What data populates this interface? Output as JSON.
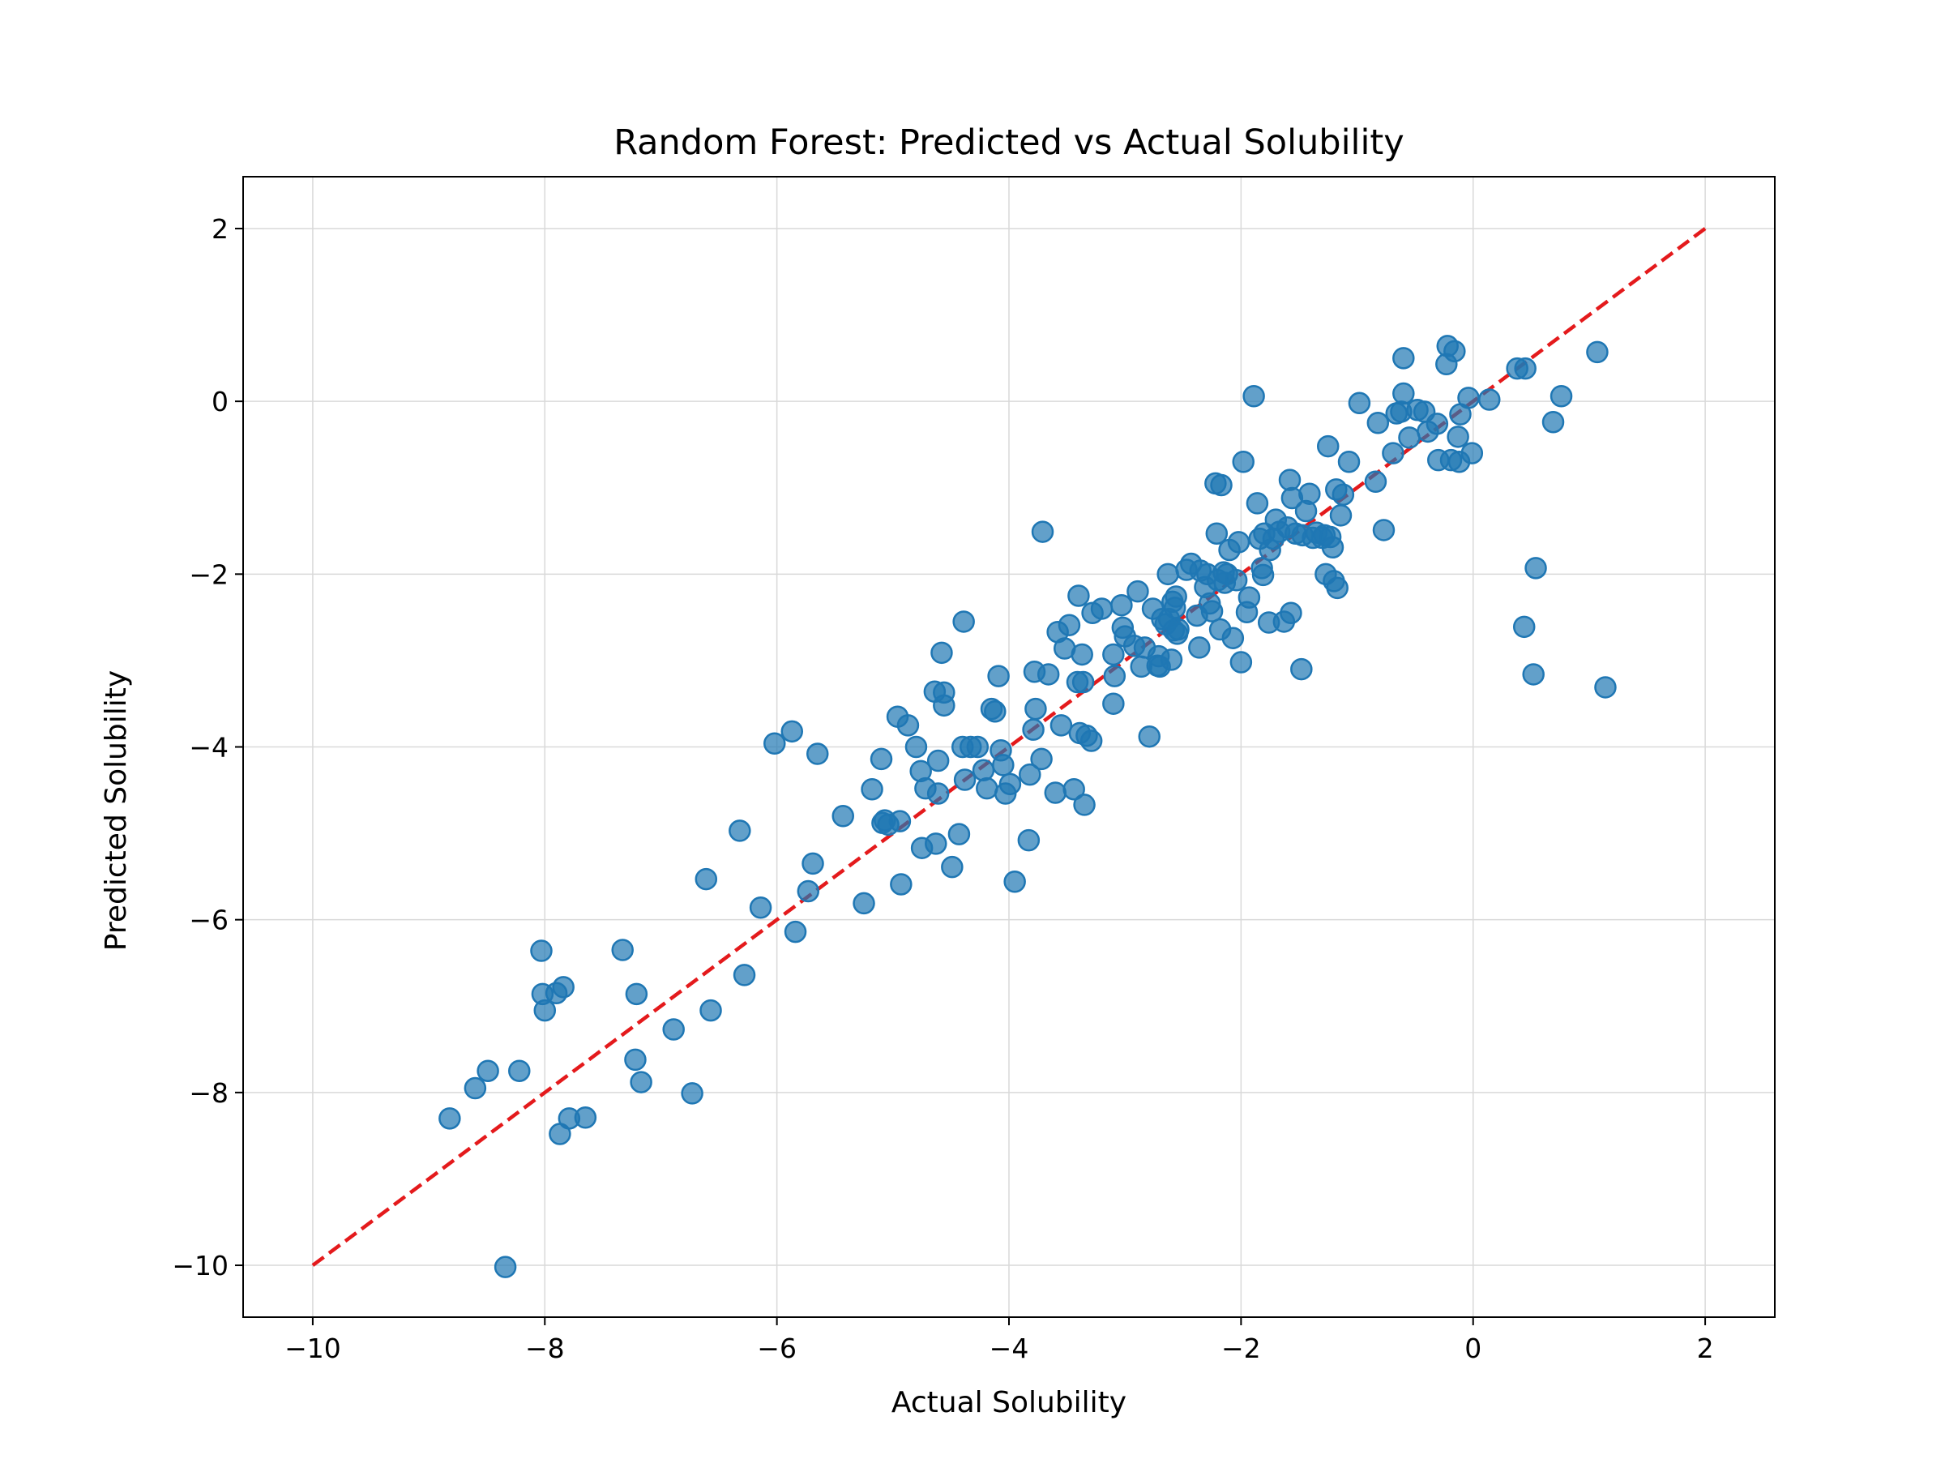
{
  "chart_data": {
    "type": "scatter",
    "title": "Random Forest: Predicted vs Actual Solubility",
    "xlabel": "Actual Solubility",
    "ylabel": "Predicted Solubility",
    "xlim": [
      -10.6,
      2.6
    ],
    "ylim": [
      -10.6,
      2.6
    ],
    "xticks": [
      -10,
      -8,
      -6,
      -4,
      -2,
      0,
      2
    ],
    "yticks": [
      -10,
      -8,
      -6,
      -4,
      -2,
      0,
      2
    ],
    "xtick_labels": [
      "−10",
      "−8",
      "−6",
      "−4",
      "−2",
      "0",
      "2"
    ],
    "ytick_labels": [
      "−10",
      "−8",
      "−6",
      "−4",
      "−2",
      "0",
      "2"
    ],
    "grid": true,
    "point_color": "#1f77b4",
    "reference_line": {
      "x": [
        -10,
        2
      ],
      "y": [
        -10,
        2
      ],
      "color": "#e41a1c",
      "style": "dashed"
    },
    "points": [
      [
        -8.82,
        -8.3
      ],
      [
        -8.6,
        -7.95
      ],
      [
        -8.49,
        -7.75
      ],
      [
        -8.34,
        -10.02
      ],
      [
        -8.22,
        -7.75
      ],
      [
        -8.03,
        -6.36
      ],
      [
        -8.02,
        -6.86
      ],
      [
        -8.0,
        -7.05
      ],
      [
        -7.9,
        -6.85
      ],
      [
        -7.84,
        -6.78
      ],
      [
        -7.87,
        -8.48
      ],
      [
        -7.79,
        -8.3
      ],
      [
        -7.65,
        -8.29
      ],
      [
        -7.33,
        -6.35
      ],
      [
        -7.21,
        -6.86
      ],
      [
        -7.22,
        -7.62
      ],
      [
        -7.17,
        -7.88
      ],
      [
        -6.89,
        -7.27
      ],
      [
        -6.73,
        -8.01
      ],
      [
        -6.61,
        -5.53
      ],
      [
        -6.57,
        -7.05
      ],
      [
        -6.32,
        -4.97
      ],
      [
        -6.28,
        -6.64
      ],
      [
        -6.14,
        -5.86
      ],
      [
        -6.02,
        -3.96
      ],
      [
        -5.87,
        -3.82
      ],
      [
        -5.84,
        -6.14
      ],
      [
        -5.73,
        -5.67
      ],
      [
        -5.69,
        -5.35
      ],
      [
        -5.65,
        -4.08
      ],
      [
        -5.43,
        -4.8
      ],
      [
        -5.25,
        -5.81
      ],
      [
        -5.18,
        -4.49
      ],
      [
        -5.1,
        -4.14
      ],
      [
        -5.09,
        -4.88
      ],
      [
        -5.07,
        -4.85
      ],
      [
        -5.04,
        -4.9
      ],
      [
        -4.96,
        -3.65
      ],
      [
        -4.94,
        -4.86
      ],
      [
        -4.93,
        -5.59
      ],
      [
        -4.87,
        -3.75
      ],
      [
        -4.8,
        -4.0
      ],
      [
        -4.76,
        -4.28
      ],
      [
        -4.75,
        -5.17
      ],
      [
        -4.72,
        -4.48
      ],
      [
        -4.64,
        -3.36
      ],
      [
        -4.63,
        -5.12
      ],
      [
        -4.61,
        -4.16
      ],
      [
        -4.61,
        -4.54
      ],
      [
        -4.58,
        -2.91
      ],
      [
        -4.56,
        -3.37
      ],
      [
        -4.56,
        -3.52
      ],
      [
        -4.49,
        -5.39
      ],
      [
        -4.43,
        -5.01
      ],
      [
        -4.39,
        -2.55
      ],
      [
        -4.4,
        -4.0
      ],
      [
        -4.38,
        -4.38
      ],
      [
        -4.33,
        -4.0
      ],
      [
        -4.27,
        -4.0
      ],
      [
        -4.22,
        -4.27
      ],
      [
        -4.19,
        -4.48
      ],
      [
        -4.15,
        -3.56
      ],
      [
        -4.12,
        -3.59
      ],
      [
        -4.09,
        -3.18
      ],
      [
        -4.07,
        -4.04
      ],
      [
        -4.05,
        -4.21
      ],
      [
        -4.03,
        -4.54
      ],
      [
        -3.99,
        -4.43
      ],
      [
        -3.95,
        -5.56
      ],
      [
        -3.83,
        -5.08
      ],
      [
        -3.82,
        -4.32
      ],
      [
        -3.79,
        -3.8
      ],
      [
        -3.78,
        -3.13
      ],
      [
        -3.77,
        -3.56
      ],
      [
        -3.72,
        -4.14
      ],
      [
        -3.71,
        -1.51
      ],
      [
        -3.66,
        -3.16
      ],
      [
        -3.6,
        -4.53
      ],
      [
        -3.58,
        -2.67
      ],
      [
        -3.55,
        -3.75
      ],
      [
        -3.52,
        -2.86
      ],
      [
        -3.48,
        -2.59
      ],
      [
        -3.44,
        -4.49
      ],
      [
        -3.41,
        -3.25
      ],
      [
        -3.4,
        -2.25
      ],
      [
        -3.39,
        -3.84
      ],
      [
        -3.36,
        -3.25
      ],
      [
        -3.37,
        -2.93
      ],
      [
        -3.35,
        -4.67
      ],
      [
        -3.33,
        -3.87
      ],
      [
        -3.29,
        -3.93
      ],
      [
        -3.28,
        -2.45
      ],
      [
        -3.2,
        -2.4
      ],
      [
        -3.1,
        -2.93
      ],
      [
        -3.09,
        -3.18
      ],
      [
        -3.1,
        -3.5
      ],
      [
        -3.03,
        -2.36
      ],
      [
        -3.02,
        -2.62
      ],
      [
        -3.0,
        -2.72
      ],
      [
        -2.92,
        -2.83
      ],
      [
        -2.89,
        -2.2
      ],
      [
        -2.86,
        -3.07
      ],
      [
        -2.83,
        -2.85
      ],
      [
        -2.79,
        -3.88
      ],
      [
        -2.76,
        -2.4
      ],
      [
        -2.72,
        -3.06
      ],
      [
        -2.71,
        -2.95
      ],
      [
        -2.7,
        -3.07
      ],
      [
        -2.68,
        -2.52
      ],
      [
        -2.65,
        -2.58
      ],
      [
        -2.63,
        -2.0
      ],
      [
        -2.62,
        -2.52
      ],
      [
        -2.59,
        -2.32
      ],
      [
        -2.6,
        -2.99
      ],
      [
        -2.58,
        -2.65
      ],
      [
        -2.57,
        -2.39
      ],
      [
        -2.56,
        -2.26
      ],
      [
        -2.55,
        -2.69
      ],
      [
        -2.54,
        -2.64
      ],
      [
        -2.47,
        -1.95
      ],
      [
        -2.43,
        -1.88
      ],
      [
        -2.38,
        -2.48
      ],
      [
        -2.36,
        -2.85
      ],
      [
        -2.35,
        -1.96
      ],
      [
        -2.31,
        -2.15
      ],
      [
        -2.29,
        -2.0
      ],
      [
        -2.27,
        -2.34
      ],
      [
        -2.25,
        -2.43
      ],
      [
        -2.22,
        -0.95
      ],
      [
        -2.21,
        -1.53
      ],
      [
        -2.2,
        -2.07
      ],
      [
        -2.18,
        -2.64
      ],
      [
        -2.17,
        -0.97
      ],
      [
        -2.15,
        -1.98
      ],
      [
        -2.14,
        -2.1
      ],
      [
        -2.12,
        -2.0
      ],
      [
        -2.1,
        -1.72
      ],
      [
        -2.07,
        -2.74
      ],
      [
        -2.04,
        -2.07
      ],
      [
        -2.02,
        -1.63
      ],
      [
        -2.0,
        -3.02
      ],
      [
        -1.98,
        -0.7
      ],
      [
        -1.95,
        -2.44
      ],
      [
        -1.93,
        -2.27
      ],
      [
        -1.89,
        0.06
      ],
      [
        -1.86,
        -1.18
      ],
      [
        -1.84,
        -1.59
      ],
      [
        -1.82,
        -1.93
      ],
      [
        -1.81,
        -2.01
      ],
      [
        -1.8,
        -1.53
      ],
      [
        -1.76,
        -2.56
      ],
      [
        -1.75,
        -1.72
      ],
      [
        -1.72,
        -1.59
      ],
      [
        -1.7,
        -1.37
      ],
      [
        -1.67,
        -1.51
      ],
      [
        -1.63,
        -2.55
      ],
      [
        -1.6,
        -1.46
      ],
      [
        -1.58,
        -0.91
      ],
      [
        -1.57,
        -2.45
      ],
      [
        -1.56,
        -1.12
      ],
      [
        -1.53,
        -1.53
      ],
      [
        -1.48,
        -3.1
      ],
      [
        -1.47,
        -1.55
      ],
      [
        -1.44,
        -1.27
      ],
      [
        -1.41,
        -1.07
      ],
      [
        -1.38,
        -1.58
      ],
      [
        -1.35,
        -1.52
      ],
      [
        -1.3,
        -1.58
      ],
      [
        -1.28,
        -1.55
      ],
      [
        -1.27,
        -2.0
      ],
      [
        -1.25,
        -0.52
      ],
      [
        -1.23,
        -1.57
      ],
      [
        -1.21,
        -1.69
      ],
      [
        -1.2,
        -2.08
      ],
      [
        -1.18,
        -1.02
      ],
      [
        -1.17,
        -2.16
      ],
      [
        -1.14,
        -1.32
      ],
      [
        -1.12,
        -1.08
      ],
      [
        -1.07,
        -0.7
      ],
      [
        -0.98,
        -0.02
      ],
      [
        -0.84,
        -0.93
      ],
      [
        -0.82,
        -0.25
      ],
      [
        -0.77,
        -1.49
      ],
      [
        -0.69,
        -0.6
      ],
      [
        -0.66,
        -0.14
      ],
      [
        -0.62,
        -0.12
      ],
      [
        -0.6,
        0.5
      ],
      [
        -0.6,
        0.09
      ],
      [
        -0.55,
        -0.42
      ],
      [
        -0.48,
        -0.1
      ],
      [
        -0.42,
        -0.12
      ],
      [
        -0.39,
        -0.35
      ],
      [
        -0.31,
        -0.26
      ],
      [
        -0.3,
        -0.68
      ],
      [
        -0.23,
        0.43
      ],
      [
        -0.22,
        0.64
      ],
      [
        -0.19,
        -0.68
      ],
      [
        -0.16,
        0.58
      ],
      [
        -0.13,
        -0.41
      ],
      [
        -0.12,
        -0.7
      ],
      [
        -0.11,
        -0.15
      ],
      [
        -0.04,
        0.04
      ],
      [
        -0.01,
        -0.6
      ],
      [
        0.14,
        0.02
      ],
      [
        0.38,
        0.38
      ],
      [
        0.45,
        0.38
      ],
      [
        0.44,
        -2.61
      ],
      [
        0.52,
        -3.16
      ],
      [
        0.54,
        -1.93
      ],
      [
        0.69,
        -0.24
      ],
      [
        0.76,
        0.06
      ],
      [
        1.07,
        0.57
      ],
      [
        1.14,
        -3.31
      ]
    ]
  }
}
